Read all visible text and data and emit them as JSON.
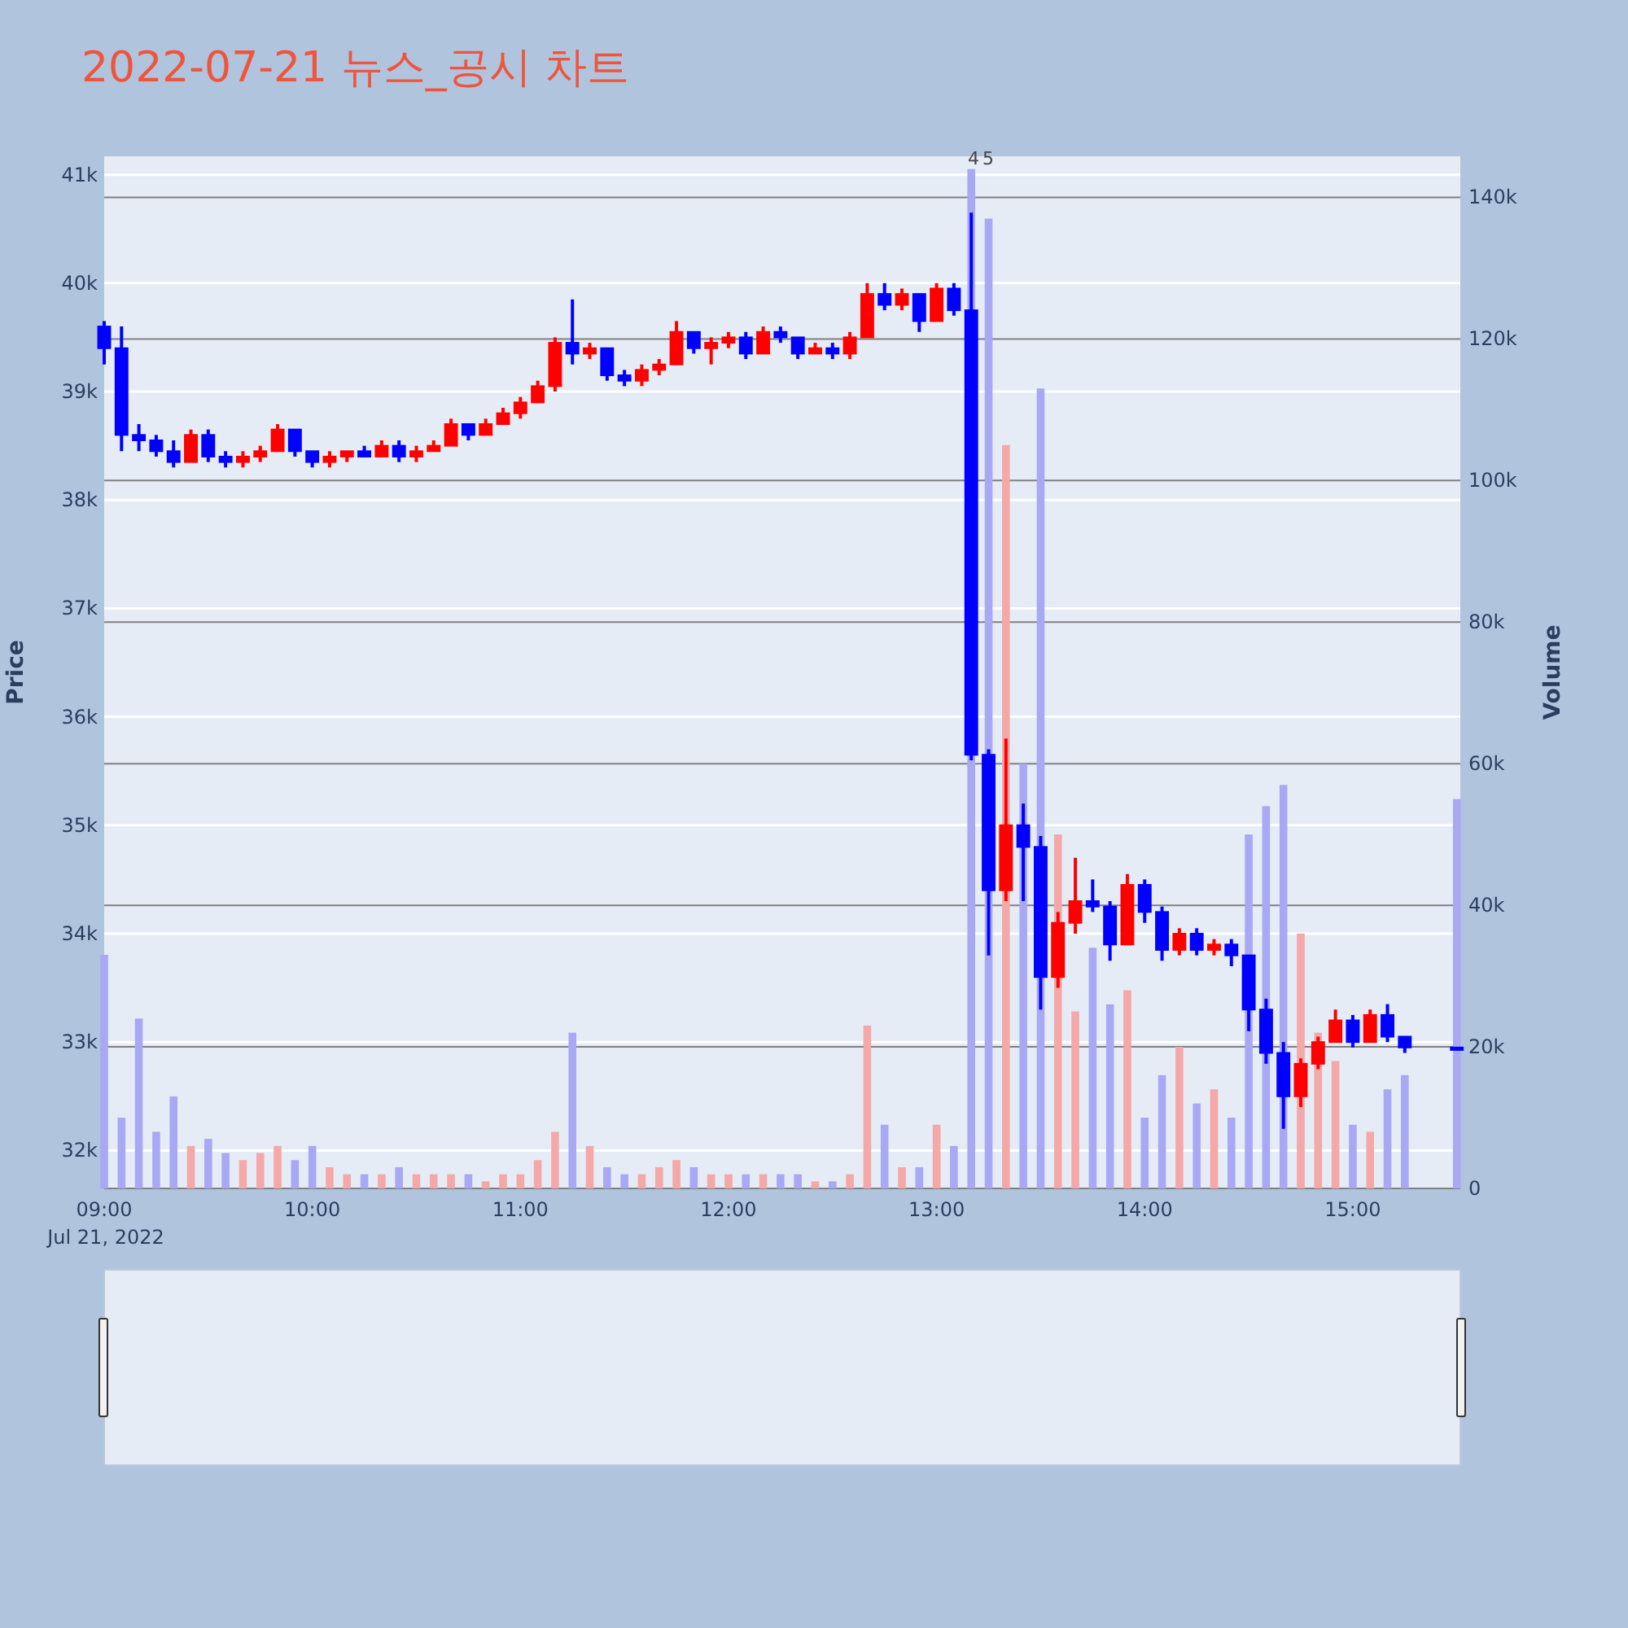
{
  "chart_data": {
    "type": "candlestick",
    "title": "2022-07-21 뉴스_공시 차트",
    "ylabel": "Price",
    "y2label": "Volume",
    "x": [
      "2022-07-21T09:00",
      "2022-07-21T09:05",
      "2022-07-21T09:10",
      "2022-07-21T09:15",
      "2022-07-21T09:20",
      "2022-07-21T09:25",
      "2022-07-21T09:30",
      "2022-07-21T09:35",
      "2022-07-21T09:40",
      "2022-07-21T09:45",
      "2022-07-21T09:50",
      "2022-07-21T09:55",
      "2022-07-21T10:00",
      "2022-07-21T10:05",
      "2022-07-21T10:10",
      "2022-07-21T10:15",
      "2022-07-21T10:20",
      "2022-07-21T10:25",
      "2022-07-21T10:30",
      "2022-07-21T10:35",
      "2022-07-21T10:40",
      "2022-07-21T10:45",
      "2022-07-21T10:50",
      "2022-07-21T10:55",
      "2022-07-21T11:00",
      "2022-07-21T11:05",
      "2022-07-21T11:10",
      "2022-07-21T11:15",
      "2022-07-21T11:20",
      "2022-07-21T11:25",
      "2022-07-21T11:30",
      "2022-07-21T11:35",
      "2022-07-21T11:40",
      "2022-07-21T11:45",
      "2022-07-21T11:50",
      "2022-07-21T11:55",
      "2022-07-21T12:00",
      "2022-07-21T12:05",
      "2022-07-21T12:10",
      "2022-07-21T12:15",
      "2022-07-21T12:20",
      "2022-07-21T12:25",
      "2022-07-21T12:30",
      "2022-07-21T12:35",
      "2022-07-21T12:40",
      "2022-07-21T12:45",
      "2022-07-21T12:50",
      "2022-07-21T12:55",
      "2022-07-21T13:00",
      "2022-07-21T13:05",
      "2022-07-21T13:10",
      "2022-07-21T13:15",
      "2022-07-21T13:20",
      "2022-07-21T13:25",
      "2022-07-21T13:30",
      "2022-07-21T13:35",
      "2022-07-21T13:40",
      "2022-07-21T13:45",
      "2022-07-21T13:50",
      "2022-07-21T13:55",
      "2022-07-21T14:00",
      "2022-07-21T14:05",
      "2022-07-21T14:10",
      "2022-07-21T14:15",
      "2022-07-21T14:20",
      "2022-07-21T14:25",
      "2022-07-21T14:30",
      "2022-07-21T14:35",
      "2022-07-21T14:40",
      "2022-07-21T14:45",
      "2022-07-21T14:50",
      "2022-07-21T14:55",
      "2022-07-21T15:00",
      "2022-07-21T15:05",
      "2022-07-21T15:10",
      "2022-07-21T15:15",
      "2022-07-21T15:30"
    ],
    "series": [
      {
        "type": "candlestick",
        "ohlc": [
          [
            39600,
            39650,
            39250,
            39400
          ],
          [
            39400,
            39600,
            38450,
            38600
          ],
          [
            38600,
            38700,
            38450,
            38550
          ],
          [
            38550,
            38600,
            38400,
            38450
          ],
          [
            38450,
            38550,
            38300,
            38350
          ],
          [
            38350,
            38650,
            38350,
            38600
          ],
          [
            38600,
            38650,
            38350,
            38400
          ],
          [
            38400,
            38450,
            38300,
            38350
          ],
          [
            38350,
            38450,
            38300,
            38400
          ],
          [
            38400,
            38500,
            38350,
            38450
          ],
          [
            38450,
            38700,
            38450,
            38650
          ],
          [
            38650,
            38650,
            38400,
            38450
          ],
          [
            38450,
            38450,
            38300,
            38350
          ],
          [
            38350,
            38450,
            38300,
            38400
          ],
          [
            38400,
            38450,
            38350,
            38450
          ],
          [
            38450,
            38500,
            38400,
            38400
          ],
          [
            38400,
            38550,
            38400,
            38500
          ],
          [
            38500,
            38550,
            38350,
            38400
          ],
          [
            38400,
            38500,
            38350,
            38450
          ],
          [
            38450,
            38550,
            38450,
            38500
          ],
          [
            38500,
            38750,
            38500,
            38700
          ],
          [
            38700,
            38700,
            38550,
            38600
          ],
          [
            38600,
            38750,
            38600,
            38700
          ],
          [
            38700,
            38850,
            38700,
            38800
          ],
          [
            38800,
            38950,
            38750,
            38900
          ],
          [
            38900,
            39100,
            38900,
            39050
          ],
          [
            39050,
            39500,
            39000,
            39450
          ],
          [
            39450,
            39850,
            39250,
            39350
          ],
          [
            39350,
            39450,
            39300,
            39400
          ],
          [
            39400,
            39400,
            39100,
            39150
          ],
          [
            39150,
            39200,
            39050,
            39100
          ],
          [
            39100,
            39250,
            39050,
            39200
          ],
          [
            39200,
            39300,
            39150,
            39250
          ],
          [
            39250,
            39650,
            39250,
            39550
          ],
          [
            39550,
            39550,
            39350,
            39400
          ],
          [
            39400,
            39500,
            39250,
            39450
          ],
          [
            39450,
            39550,
            39400,
            39500
          ],
          [
            39500,
            39550,
            39300,
            39350
          ],
          [
            39350,
            39600,
            39350,
            39550
          ],
          [
            39550,
            39600,
            39450,
            39500
          ],
          [
            39500,
            39500,
            39300,
            39350
          ],
          [
            39350,
            39450,
            39350,
            39400
          ],
          [
            39400,
            39450,
            39300,
            39350
          ],
          [
            39350,
            39550,
            39300,
            39500
          ],
          [
            39500,
            40000,
            39500,
            39900
          ],
          [
            39900,
            40000,
            39750,
            39800
          ],
          [
            39800,
            39950,
            39750,
            39900
          ],
          [
            39900,
            39900,
            39550,
            39650
          ],
          [
            39650,
            40000,
            39650,
            39950
          ],
          [
            39950,
            40000,
            39700,
            39750
          ],
          [
            39750,
            40650,
            35600,
            35650
          ],
          [
            35650,
            35700,
            33800,
            34400
          ],
          [
            34400,
            35800,
            34300,
            35000
          ],
          [
            35000,
            35200,
            34300,
            34800
          ],
          [
            34800,
            34900,
            33300,
            33600
          ],
          [
            33600,
            34200,
            33500,
            34100
          ],
          [
            34100,
            34700,
            34000,
            34300
          ],
          [
            34300,
            34500,
            34200,
            34250
          ],
          [
            34250,
            34300,
            33750,
            33900
          ],
          [
            33900,
            34550,
            33900,
            34450
          ],
          [
            34450,
            34500,
            34100,
            34200
          ],
          [
            34200,
            34250,
            33750,
            33850
          ],
          [
            33850,
            34050,
            33800,
            34000
          ],
          [
            34000,
            34050,
            33800,
            33850
          ],
          [
            33850,
            33950,
            33800,
            33900
          ],
          [
            33900,
            33950,
            33700,
            33800
          ],
          [
            33800,
            33800,
            33100,
            33300
          ],
          [
            33300,
            33400,
            32800,
            32900
          ],
          [
            32900,
            33000,
            32200,
            32500
          ],
          [
            32500,
            32850,
            32400,
            32800
          ],
          [
            32800,
            33050,
            32750,
            33000
          ],
          [
            33000,
            33300,
            33000,
            33200
          ],
          [
            33200,
            33250,
            32950,
            33000
          ],
          [
            33000,
            33300,
            33000,
            33250
          ],
          [
            33250,
            33350,
            33000,
            33050
          ],
          [
            33050,
            33050,
            32900,
            32950
          ],
          [
            32950,
            32950,
            32950,
            32950
          ]
        ],
        "colors": [
          "#0000ff",
          "#0000ff",
          "#0000ff",
          "#0000ff",
          "#0000ff",
          "#ff0000",
          "#0000ff",
          "#0000ff",
          "#ff0000",
          "#ff0000",
          "#ff0000",
          "#0000ff",
          "#0000ff",
          "#ff0000",
          "#ff0000",
          "#0000ff",
          "#ff0000",
          "#0000ff",
          "#ff0000",
          "#ff0000",
          "#ff0000",
          "#0000ff",
          "#ff0000",
          "#ff0000",
          "#ff0000",
          "#ff0000",
          "#ff0000",
          "#0000ff",
          "#ff0000",
          "#0000ff",
          "#0000ff",
          "#ff0000",
          "#ff0000",
          "#ff0000",
          "#0000ff",
          "#ff0000",
          "#ff0000",
          "#0000ff",
          "#ff0000",
          "#0000ff",
          "#0000ff",
          "#ff0000",
          "#0000ff",
          "#ff0000",
          "#ff0000",
          "#0000ff",
          "#ff0000",
          "#0000ff",
          "#ff0000",
          "#0000ff",
          "#0000ff",
          "#0000ff",
          "#ff0000",
          "#0000ff",
          "#0000ff",
          "#ff0000",
          "#ff0000",
          "#0000ff",
          "#0000ff",
          "#ff0000",
          "#0000ff",
          "#0000ff",
          "#ff0000",
          "#0000ff",
          "#ff0000",
          "#0000ff",
          "#0000ff",
          "#0000ff",
          "#0000ff",
          "#ff0000",
          "#ff0000",
          "#ff0000",
          "#0000ff",
          "#ff0000",
          "#0000ff",
          "#0000ff",
          "#0000ff"
        ]
      },
      {
        "type": "bar",
        "axis": "y2",
        "values": [
          33000,
          10000,
          24000,
          8000,
          13000,
          6000,
          7000,
          5000,
          4000,
          5000,
          6000,
          4000,
          6000,
          3000,
          2000,
          2000,
          2000,
          3000,
          2000,
          2000,
          2000,
          2000,
          1000,
          2000,
          2000,
          4000,
          8000,
          22000,
          6000,
          3000,
          2000,
          2000,
          3000,
          4000,
          3000,
          2000,
          2000,
          2000,
          2000,
          2000,
          2000,
          1000,
          1000,
          2000,
          23000,
          9000,
          3000,
          3000,
          9000,
          6000,
          144000,
          137000,
          105000,
          60000,
          113000,
          50000,
          25000,
          34000,
          26000,
          28000,
          10000,
          16000,
          20000,
          12000,
          14000,
          10000,
          50000,
          54000,
          57000,
          36000,
          22000,
          18000,
          9000,
          8000,
          14000,
          16000,
          55000
        ],
        "colors": [
          "#a8a8f4",
          "#a8a8f4",
          "#a8a8f4",
          "#a8a8f4",
          "#a8a8f4",
          "#f4a8a8",
          "#a8a8f4",
          "#a8a8f4",
          "#f4a8a8",
          "#f4a8a8",
          "#f4a8a8",
          "#a8a8f4",
          "#a8a8f4",
          "#f4a8a8",
          "#f4a8a8",
          "#a8a8f4",
          "#f4a8a8",
          "#a8a8f4",
          "#f4a8a8",
          "#f4a8a8",
          "#f4a8a8",
          "#a8a8f4",
          "#f4a8a8",
          "#f4a8a8",
          "#f4a8a8",
          "#f4a8a8",
          "#f4a8a8",
          "#a8a8f4",
          "#f4a8a8",
          "#a8a8f4",
          "#a8a8f4",
          "#f4a8a8",
          "#f4a8a8",
          "#f4a8a8",
          "#a8a8f4",
          "#f4a8a8",
          "#f4a8a8",
          "#a8a8f4",
          "#f4a8a8",
          "#a8a8f4",
          "#a8a8f4",
          "#f4a8a8",
          "#a8a8f4",
          "#f4a8a8",
          "#f4a8a8",
          "#a8a8f4",
          "#f4a8a8",
          "#a8a8f4",
          "#f4a8a8",
          "#a8a8f4",
          "#a8a8f4",
          "#a8a8f4",
          "#f4a8a8",
          "#a8a8f4",
          "#a8a8f4",
          "#f4a8a8",
          "#f4a8a8",
          "#a8a8f4",
          "#a8a8f4",
          "#f4a8a8",
          "#a8a8f4",
          "#a8a8f4",
          "#f4a8a8",
          "#a8a8f4",
          "#f4a8a8",
          "#a8a8f4",
          "#a8a8f4",
          "#a8a8f4",
          "#a8a8f4",
          "#f4a8a8",
          "#f4a8a8",
          "#f4a8a8",
          "#a8a8f4",
          "#f4a8a8",
          "#a8a8f4",
          "#a8a8f4",
          "#a8a8f4"
        ]
      }
    ],
    "xlim": [
      "2022-07-21T09:00",
      "2022-07-21T15:31"
    ],
    "xticks": [
      {
        "value": "2022-07-21T09:00",
        "label": "09:00\nJul 21, 2022"
      },
      {
        "value": "2022-07-21T10:00",
        "label": "10:00"
      },
      {
        "value": "2022-07-21T11:00",
        "label": "11:00"
      },
      {
        "value": "2022-07-21T12:00",
        "label": "12:00"
      },
      {
        "value": "2022-07-21T13:00",
        "label": "13:00"
      },
      {
        "value": "2022-07-21T14:00",
        "label": "14:00"
      },
      {
        "value": "2022-07-21T15:00",
        "label": "15:00"
      }
    ],
    "ylim": [
      31650,
      41170
    ],
    "yticks": [
      {
        "value": 32000,
        "label": "32k"
      },
      {
        "value": 33000,
        "label": "33k"
      },
      {
        "value": 34000,
        "label": "34k"
      },
      {
        "value": 35000,
        "label": "35k"
      },
      {
        "value": 36000,
        "label": "36k"
      },
      {
        "value": 37000,
        "label": "37k"
      },
      {
        "value": 38000,
        "label": "38k"
      },
      {
        "value": 39000,
        "label": "39k"
      },
      {
        "value": 40000,
        "label": "40k"
      },
      {
        "value": 41000,
        "label": "41k"
      }
    ],
    "y2lim": [
      0,
      145800
    ],
    "y2ticks": [
      0,
      {
        "value": 20000,
        "label": "20k"
      },
      {
        "value": 40000,
        "label": "40k"
      },
      {
        "value": 60000,
        "label": "60k"
      },
      {
        "value": 80000,
        "label": "80k"
      },
      {
        "value": 100000,
        "label": "100k"
      },
      {
        "value": 120000,
        "label": "120k"
      },
      {
        "value": 140000,
        "label": "140k"
      }
    ],
    "grid": "y",
    "annotations": [
      "4",
      "5"
    ]
  }
}
